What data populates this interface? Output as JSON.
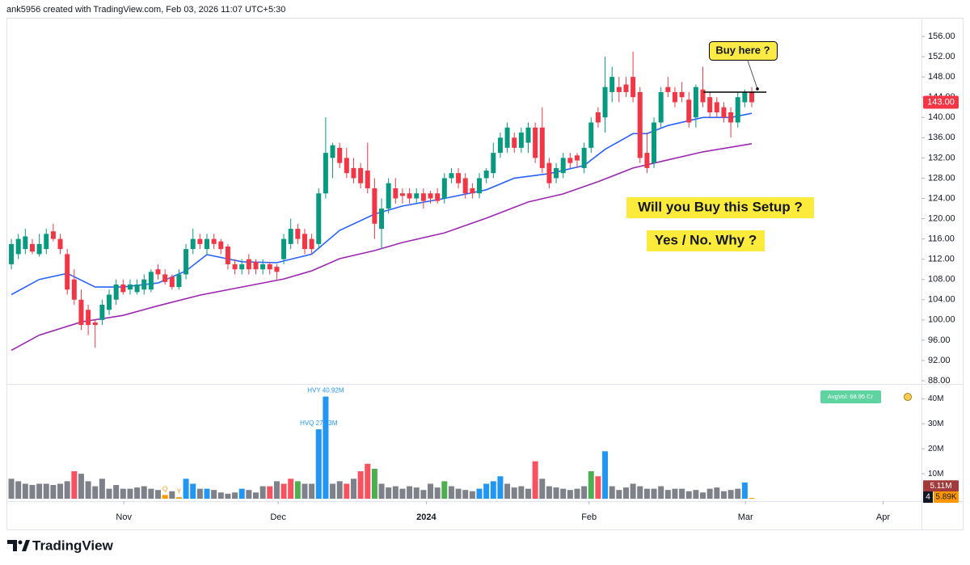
{
  "header": {
    "text": "ank5956 created with TradingView.com, Feb 03, 2026 11:07 UTC+5:30"
  },
  "footer": {
    "brand": "TradingView"
  },
  "chart_data": {
    "type": "candlestick",
    "up_color": "#089981",
    "down_color": "#f23645",
    "xlim": [
      -0.7,
      130.3
    ],
    "xticks": [
      {
        "value": 16.1,
        "label": "Nov"
      },
      {
        "value": 38.2,
        "label": "Dec"
      },
      {
        "value": 59.4,
        "label": "2024",
        "bold": true
      },
      {
        "value": 82.7,
        "label": "Feb"
      },
      {
        "value": 105.1,
        "label": "Mar"
      },
      {
        "value": 124.8,
        "label": "Apr"
      }
    ],
    "ylim": [
      88,
      158.4
    ],
    "yticks": [
      {
        "value": 88,
        "label": "88.00"
      },
      {
        "value": 92,
        "label": "92.00"
      },
      {
        "value": 96,
        "label": "96.00"
      },
      {
        "value": 100,
        "label": "100.00"
      },
      {
        "value": 104,
        "label": "104.00"
      },
      {
        "value": 108,
        "label": "108.00"
      },
      {
        "value": 112,
        "label": "112.00"
      },
      {
        "value": 116,
        "label": "116.00"
      },
      {
        "value": 120,
        "label": "120.00"
      },
      {
        "value": 124,
        "label": "124.00"
      },
      {
        "value": 128,
        "label": "128.00"
      },
      {
        "value": 132,
        "label": "132.00"
      },
      {
        "value": 136,
        "label": "136.00"
      },
      {
        "value": 140,
        "label": "140.00"
      },
      {
        "value": 144,
        "label": "144.00"
      },
      {
        "value": 148,
        "label": "148.00"
      },
      {
        "value": 152,
        "label": "152.00"
      },
      {
        "value": 156,
        "label": "156.00"
      }
    ],
    "grid": false,
    "open": [
      111,
      113,
      114,
      115,
      113,
      114,
      117.5,
      116,
      113,
      108,
      104,
      102,
      99.5,
      100,
      102,
      104,
      107,
      106,
      105.5,
      106,
      106,
      110,
      109,
      108.5,
      106.5,
      109,
      114,
      116,
      114,
      116,
      115.5,
      114.5,
      111,
      110,
      112,
      111.5,
      110,
      111,
      110.5,
      112,
      115,
      118,
      117,
      116,
      115,
      125,
      132,
      134,
      132,
      130,
      130,
      129.5,
      126,
      118,
      122,
      126,
      125,
      125,
      124,
      125,
      125,
      125,
      124,
      128,
      129,
      128,
      126,
      125,
      128,
      129,
      133,
      134,
      136,
      134,
      135,
      138,
      138,
      131,
      128,
      129,
      132,
      132.5,
      130,
      134,
      141,
      140,
      145,
      146,
      146.5,
      148,
      145,
      133,
      131,
      139,
      146,
      145,
      145,
      143.5,
      140,
      145.5,
      144,
      143,
      142,
      141,
      139,
      143,
      145
    ],
    "high": [
      116,
      117,
      118,
      116,
      117,
      118,
      119,
      117,
      114,
      110,
      106,
      103,
      100,
      104,
      106,
      108,
      108,
      108,
      108,
      109,
      110,
      111,
      110,
      109,
      110,
      115,
      118,
      117,
      117,
      117,
      116,
      115,
      112,
      112,
      113,
      112,
      112,
      111.5,
      111,
      117,
      120,
      119,
      118,
      117,
      126,
      140,
      135,
      135,
      134,
      132,
      131,
      135,
      128,
      124,
      128,
      128,
      126,
      126,
      126,
      126,
      125.5,
      126,
      129,
      130,
      130,
      129,
      127,
      129,
      130,
      135,
      137,
      139,
      137,
      138,
      139,
      139,
      142,
      132,
      131,
      133,
      133,
      133,
      135,
      140,
      142,
      152,
      150,
      148,
      148,
      153,
      146,
      137,
      140,
      146,
      148,
      146,
      147,
      145,
      146.5,
      150,
      145,
      144,
      143,
      142,
      145,
      145.5,
      146
    ],
    "low": [
      110,
      112,
      113,
      113,
      112.5,
      113,
      115.5,
      113,
      105,
      103,
      98,
      97,
      94.5,
      99,
      101,
      103,
      105,
      105,
      105,
      105,
      105.5,
      108,
      107,
      106,
      106,
      108,
      113,
      114,
      113,
      114,
      113,
      110,
      109,
      109,
      109,
      109,
      109,
      109,
      108,
      111,
      114,
      115,
      113,
      113,
      114,
      124,
      128,
      130,
      128,
      127,
      126,
      125,
      116,
      114,
      121,
      123,
      123,
      123,
      123,
      122,
      123,
      123,
      123,
      127,
      126,
      124,
      124,
      124,
      127,
      128,
      132,
      133,
      133,
      133,
      133,
      131,
      129,
      126,
      127,
      128,
      130,
      130,
      129,
      133,
      138,
      137,
      143,
      143,
      144,
      143,
      131,
      129,
      130,
      138,
      144,
      142,
      143,
      138,
      138,
      142,
      140,
      140,
      139,
      136,
      138,
      142,
      142
    ],
    "close": [
      115,
      116,
      116.5,
      113.5,
      115,
      117,
      116,
      114,
      106,
      104,
      99,
      99,
      99,
      103,
      105,
      107,
      105.5,
      107,
      107,
      108,
      109.5,
      109,
      107.5,
      106.5,
      109,
      114,
      116,
      115,
      116,
      115,
      114,
      111,
      110,
      111,
      110,
      110,
      111,
      110,
      109.5,
      116,
      118,
      116,
      114,
      114,
      125,
      133,
      134.5,
      131,
      129,
      128,
      127,
      126,
      119,
      122,
      127,
      124,
      124.5,
      124,
      125,
      123.5,
      124,
      123.5,
      128,
      129,
      127,
      125,
      125,
      128,
      129.5,
      133,
      136,
      138,
      134,
      137,
      138,
      132,
      130,
      127,
      130,
      132,
      131,
      131.5,
      134,
      139,
      139,
      146,
      148,
      145,
      145,
      144,
      132,
      130,
      139,
      145,
      145,
      143,
      144,
      139,
      146,
      143,
      141,
      141,
      140,
      139,
      144,
      145,
      143
    ],
    "ma_lines": [
      {
        "color": "#2962ff",
        "x": [
          0,
          4,
          8,
          12,
          16,
          21,
          25,
          28,
          33,
          38,
          43,
          47,
          52,
          56,
          62,
          68,
          72,
          77,
          82,
          85,
          89,
          91,
          94,
          99,
          103,
          106
        ],
        "values": [
          105,
          108,
          109.2,
          106.5,
          106.5,
          107.3,
          109.7,
          112.9,
          111.5,
          111.3,
          113,
          117.7,
          120.9,
          122.5,
          124,
          125.7,
          128,
          128.9,
          130.5,
          133.7,
          136.8,
          136.8,
          138.4,
          140,
          140,
          140.8
        ]
      },
      {
        "color": "#9c27b0",
        "x": [
          0,
          4,
          10,
          16,
          21,
          27,
          33,
          39,
          43,
          47,
          52,
          56,
          62,
          68,
          74,
          79,
          84,
          89,
          93,
          99,
          106
        ],
        "values": [
          94,
          97,
          99.6,
          100.9,
          102.8,
          104.9,
          106.5,
          108.1,
          109.7,
          112.1,
          113.7,
          115.3,
          117.2,
          120.1,
          123.3,
          124.9,
          127.3,
          130,
          131.3,
          133.2,
          134.8
        ]
      }
    ],
    "last_price": {
      "value": 143,
      "label": "143.00",
      "color": "#f23645"
    },
    "level_line": {
      "value": 145,
      "from": 99.1,
      "to": 108.1,
      "color": "#000000"
    },
    "callouts": {
      "buy": "Buy here ?",
      "question": "Will you Buy this Setup ?",
      "answer": "Yes / No. Why ?"
    },
    "volume": {
      "ylim": [
        0,
        45
      ],
      "yticks": [
        {
          "value": 10,
          "label": "10M"
        },
        {
          "value": 20,
          "label": "20M"
        },
        {
          "value": 30,
          "label": "30M"
        },
        {
          "value": 40,
          "label": "40M"
        }
      ],
      "values": [
        8,
        7,
        6,
        5.5,
        6,
        6,
        5.5,
        6,
        7,
        11,
        10,
        7,
        5,
        8,
        4,
        5.5,
        4,
        4,
        4.5,
        5,
        4,
        3.5,
        1.5,
        3,
        0.6,
        8,
        6,
        4,
        4,
        3.5,
        2.5,
        2,
        2.5,
        4,
        3.5,
        2.5,
        5,
        5,
        7,
        6,
        8,
        7,
        6,
        6,
        27.8,
        40.92,
        6,
        7,
        6,
        8,
        11,
        14,
        12,
        6,
        4.5,
        5,
        4,
        5,
        4.5,
        3.5,
        6,
        4.5,
        7,
        5,
        4,
        3.5,
        3,
        4,
        6,
        7,
        9,
        6,
        4.5,
        5,
        4,
        15,
        8,
        5,
        4.5,
        4,
        3.5,
        4,
        5,
        11,
        9,
        19,
        5,
        3.5,
        4.5,
        6,
        5,
        4,
        4,
        5,
        3.5,
        4,
        4,
        3,
        3.5,
        2.5,
        4,
        4.5,
        3,
        3.5,
        4,
        6.5,
        0.00589
      ],
      "colors": [
        "#7e8189",
        "#7e8189",
        "#7e8189",
        "#7e8189",
        "#7e8189",
        "#7e8189",
        "#7e8189",
        "#7e8189",
        "#7e8189",
        "#f7525f",
        "#7e8189",
        "#7e8189",
        "#7e8189",
        "#7e8189",
        "#7e8189",
        "#7e8189",
        "#7e8189",
        "#7e8189",
        "#7e8189",
        "#7e8189",
        "#7e8189",
        "#7e8189",
        "#ff9800",
        "#7e8189",
        "#ff9800",
        "#2196f3",
        "#2196f3",
        "#7e8189",
        "#2196f3",
        "#7e8189",
        "#7e8189",
        "#7e8189",
        "#7e8189",
        "#2196f3",
        "#7e8189",
        "#7e8189",
        "#7e8189",
        "#f7525f",
        "#7e8189",
        "#f7525f",
        "#f7525f",
        "#4caf50",
        "#7e8189",
        "#7e8189",
        "#2196f3",
        "#2196f3",
        "#7e8189",
        "#7e8189",
        "#f7525f",
        "#7e8189",
        "#f7525f",
        "#f7525f",
        "#4caf50",
        "#7e8189",
        "#7e8189",
        "#7e8189",
        "#7e8189",
        "#7e8189",
        "#7e8189",
        "#7e8189",
        "#7e8189",
        "#7e8189",
        "#4caf50",
        "#7e8189",
        "#7e8189",
        "#7e8189",
        "#7e8189",
        "#2196f3",
        "#2196f3",
        "#2196f3",
        "#2196f3",
        "#7e8189",
        "#7e8189",
        "#7e8189",
        "#7e8189",
        "#f7525f",
        "#7e8189",
        "#7e8189",
        "#7e8189",
        "#7e8189",
        "#7e8189",
        "#7e8189",
        "#7e8189",
        "#4caf50",
        "#f7525f",
        "#2196f3",
        "#7e8189",
        "#7e8189",
        "#7e8189",
        "#7e8189",
        "#7e8189",
        "#7e8189",
        "#7e8189",
        "#7e8189",
        "#7e8189",
        "#7e8189",
        "#7e8189",
        "#7e8189",
        "#7e8189",
        "#7e8189",
        "#7e8189",
        "#7e8189",
        "#7e8189",
        "#7e8189",
        "#7e8189",
        "#2196f3",
        "#ff9800"
      ],
      "annotations": [
        {
          "bar": 45,
          "text": "HVY 40.92M",
          "color": "#2196f3"
        },
        {
          "bar": 44,
          "text": "HVQ 27.83M",
          "color": "#2196f3"
        },
        {
          "bar": 22,
          "text": "Q",
          "color": "#ff9800"
        },
        {
          "bar": 24,
          "text": "Y",
          "color": "#ff9800"
        }
      ],
      "tags": [
        {
          "value": 5.11,
          "label": "5.11M",
          "color": "#a33a3a"
        },
        {
          "value": 0.00589,
          "prefix": "4",
          "label": "5.89K",
          "color": "#ff9800"
        }
      ],
      "avg_badge": "AvgVol: 68.95 Cr"
    }
  }
}
